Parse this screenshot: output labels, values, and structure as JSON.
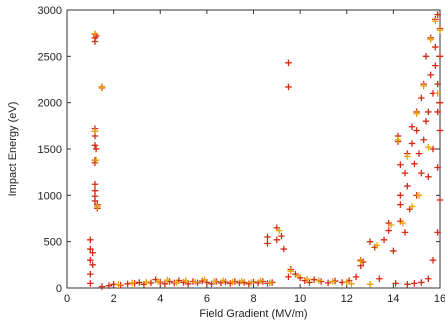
{
  "chart_data": {
    "type": "scatter",
    "title": "",
    "xlabel": "Field Gradient (MV/m)",
    "ylabel": "Impact Energy (eV)",
    "xlim": [
      0,
      16
    ],
    "ylim": [
      0,
      3000
    ],
    "x_ticks": [
      0,
      2,
      4,
      6,
      8,
      10,
      12,
      14,
      16
    ],
    "y_ticks": [
      0,
      500,
      1000,
      1500,
      2000,
      2500,
      3000
    ],
    "x_tick_labels": [
      "0",
      "2",
      "4",
      "6",
      "8",
      "10",
      "12",
      "14",
      "16"
    ],
    "y_tick_labels": [
      "0",
      "500",
      "1000",
      "1500",
      "2000",
      "2500",
      "3000"
    ],
    "grid": false,
    "legend": "none",
    "marker": "plus",
    "colors": {
      "primary": "#d62a12",
      "secondary": "#e8a400",
      "axis": "#333333"
    },
    "series": [
      {
        "color": "#d62a12",
        "points": [
          [
            1.0,
            520
          ],
          [
            1.0,
            420
          ],
          [
            1.0,
            300
          ],
          [
            1.1,
            380
          ],
          [
            1.1,
            250
          ],
          [
            1.0,
            150
          ],
          [
            1.0,
            50
          ],
          [
            1.2,
            2740
          ],
          [
            1.2,
            2700
          ],
          [
            1.2,
            2660
          ],
          [
            1.25,
            2720
          ],
          [
            1.2,
            1720
          ],
          [
            1.2,
            1690
          ],
          [
            1.2,
            1640
          ],
          [
            1.2,
            1540
          ],
          [
            1.25,
            1500
          ],
          [
            1.2,
            1380
          ],
          [
            1.2,
            1350
          ],
          [
            1.2,
            1120
          ],
          [
            1.2,
            1050
          ],
          [
            1.2,
            990
          ],
          [
            1.2,
            940
          ],
          [
            1.3,
            900
          ],
          [
            1.3,
            860
          ],
          [
            1.5,
            2170
          ],
          [
            1.5,
            2160
          ],
          [
            1.5,
            15
          ],
          [
            1.8,
            25
          ],
          [
            2.0,
            40
          ],
          [
            2.3,
            30
          ],
          [
            2.6,
            45
          ],
          [
            2.9,
            50
          ],
          [
            3.1,
            60
          ],
          [
            3.3,
            40
          ],
          [
            3.6,
            55
          ],
          [
            3.8,
            90
          ],
          [
            4.0,
            65
          ],
          [
            4.2,
            45
          ],
          [
            4.4,
            70
          ],
          [
            4.6,
            55
          ],
          [
            4.8,
            80
          ],
          [
            5.0,
            60
          ],
          [
            5.2,
            45
          ],
          [
            5.4,
            70
          ],
          [
            5.6,
            55
          ],
          [
            5.8,
            75
          ],
          [
            6.0,
            60
          ],
          [
            6.2,
            45
          ],
          [
            6.4,
            70
          ],
          [
            6.6,
            55
          ],
          [
            6.8,
            65
          ],
          [
            7.0,
            50
          ],
          [
            7.2,
            70
          ],
          [
            7.4,
            55
          ],
          [
            7.6,
            60
          ],
          [
            7.8,
            45
          ],
          [
            8.0,
            65
          ],
          [
            8.2,
            55
          ],
          [
            8.4,
            70
          ],
          [
            8.6,
            50
          ],
          [
            8.8,
            60
          ],
          [
            8.6,
            550
          ],
          [
            8.6,
            480
          ],
          [
            9.0,
            650
          ],
          [
            9.0,
            520
          ],
          [
            9.2,
            560
          ],
          [
            9.3,
            420
          ],
          [
            9.5,
            2430
          ],
          [
            9.5,
            2170
          ],
          [
            9.5,
            120
          ],
          [
            9.6,
            200
          ],
          [
            9.8,
            150
          ],
          [
            10.0,
            110
          ],
          [
            10.2,
            80
          ],
          [
            10.4,
            60
          ],
          [
            10.6,
            90
          ],
          [
            10.9,
            70
          ],
          [
            11.2,
            55
          ],
          [
            11.5,
            75
          ],
          [
            11.8,
            60
          ],
          [
            12.1,
            80
          ],
          [
            12.4,
            120
          ],
          [
            12.6,
            300
          ],
          [
            12.6,
            240
          ],
          [
            12.7,
            280
          ],
          [
            13.0,
            500
          ],
          [
            13.2,
            440
          ],
          [
            13.4,
            100
          ],
          [
            13.6,
            520
          ],
          [
            13.8,
            620
          ],
          [
            13.8,
            700
          ],
          [
            14.0,
            400
          ],
          [
            14.1,
            50
          ],
          [
            14.2,
            1580
          ],
          [
            14.2,
            1640
          ],
          [
            14.3,
            1330
          ],
          [
            14.3,
            1000
          ],
          [
            14.3,
            900
          ],
          [
            14.3,
            720
          ],
          [
            14.5,
            600
          ],
          [
            14.5,
            1240
          ],
          [
            14.6,
            1450
          ],
          [
            14.6,
            1100
          ],
          [
            14.7,
            850
          ],
          [
            14.8,
            1740
          ],
          [
            14.8,
            1560
          ],
          [
            14.9,
            1340
          ],
          [
            15.0,
            1000
          ],
          [
            15.0,
            1700
          ],
          [
            15.0,
            1900
          ],
          [
            15.1,
            1450
          ],
          [
            15.2,
            2050
          ],
          [
            15.2,
            1240
          ],
          [
            15.3,
            1600
          ],
          [
            15.3,
            2200
          ],
          [
            15.4,
            1800
          ],
          [
            15.4,
            2500
          ],
          [
            15.5,
            1900
          ],
          [
            15.5,
            1200
          ],
          [
            15.6,
            2700
          ],
          [
            15.6,
            2300
          ],
          [
            15.7,
            2100
          ],
          [
            15.7,
            1500
          ],
          [
            15.8,
            2900
          ],
          [
            15.8,
            2600
          ],
          [
            15.8,
            2400
          ],
          [
            15.9,
            2950
          ],
          [
            15.9,
            2200
          ],
          [
            15.9,
            1900
          ],
          [
            15.9,
            1300
          ],
          [
            16.0,
            2800
          ],
          [
            16.0,
            2500
          ],
          [
            16.0,
            2000
          ],
          [
            16.0,
            1700
          ],
          [
            16.0,
            950
          ],
          [
            15.9,
            600
          ],
          [
            15.7,
            300
          ],
          [
            15.5,
            100
          ],
          [
            15.2,
            60
          ],
          [
            14.9,
            50
          ],
          [
            14.6,
            40
          ]
        ]
      },
      {
        "color": "#e8a400",
        "points": [
          [
            1.2,
            2745
          ],
          [
            1.2,
            1690
          ],
          [
            1.25,
            1380
          ],
          [
            1.5,
            2165
          ],
          [
            1.3,
            880
          ],
          [
            2.2,
            35
          ],
          [
            2.8,
            55
          ],
          [
            3.4,
            65
          ],
          [
            3.9,
            70
          ],
          [
            4.3,
            85
          ],
          [
            4.7,
            60
          ],
          [
            5.1,
            80
          ],
          [
            5.5,
            65
          ],
          [
            5.9,
            90
          ],
          [
            6.3,
            70
          ],
          [
            6.7,
            80
          ],
          [
            7.1,
            65
          ],
          [
            7.5,
            75
          ],
          [
            7.9,
            60
          ],
          [
            8.3,
            80
          ],
          [
            8.7,
            55
          ],
          [
            9.1,
            620
          ],
          [
            9.6,
            180
          ],
          [
            9.9,
            130
          ],
          [
            10.3,
            95
          ],
          [
            10.8,
            80
          ],
          [
            11.4,
            70
          ],
          [
            12.0,
            65
          ],
          [
            12.6,
            290
          ],
          [
            13.3,
            460
          ],
          [
            13.9,
            680
          ],
          [
            14.2,
            1600
          ],
          [
            14.6,
            1420
          ],
          [
            15.0,
            1880
          ],
          [
            15.3,
            2180
          ],
          [
            15.6,
            2680
          ],
          [
            15.8,
            2880
          ],
          [
            16.0,
            2780
          ],
          [
            15.9,
            2100
          ],
          [
            15.5,
            1520
          ],
          [
            15.1,
            1000
          ],
          [
            14.8,
            880
          ],
          [
            14.4,
            700
          ],
          [
            13.0,
            40
          ],
          [
            12.2,
            45
          ]
        ]
      }
    ]
  }
}
